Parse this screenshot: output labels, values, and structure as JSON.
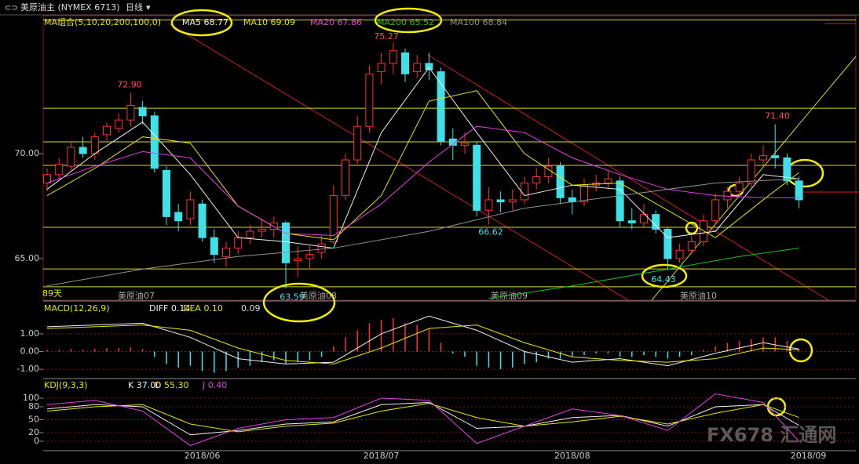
{
  "header": {
    "title": "美原油主 (NYMEX 6713)",
    "period": "日线",
    "watermark": "FX678 汇通网",
    "days": "89天",
    "contracts": [
      "美原油07",
      "美原油08",
      "美原油09",
      "美原油10"
    ]
  },
  "chart_data": [
    {
      "type": "candlestick",
      "title": "MA组合(5,10,20,200,100,0)",
      "ylim": [
        63.02,
        76.57
      ],
      "yticks": [
        {
          "value": 70,
          "label": "70.00"
        },
        {
          "value": 65,
          "label": "65.00"
        }
      ],
      "up_color": "#ff3030",
      "down_color": "#40e0e8",
      "categories": [
        null,
        null,
        null,
        null,
        null,
        null,
        null,
        null,
        null,
        null,
        null,
        null,
        null,
        "2018/06",
        null,
        null,
        null,
        null,
        null,
        null,
        null,
        null,
        null,
        null,
        null,
        null,
        null,
        null,
        "2018/07",
        null,
        null,
        null,
        null,
        null,
        null,
        null,
        null,
        null,
        null,
        null,
        null,
        null,
        null,
        null,
        "2018/08",
        null,
        null,
        null,
        null,
        null,
        null,
        null,
        null,
        null,
        null,
        null,
        null,
        null,
        null,
        null,
        null,
        null,
        null,
        "2018/09"
      ],
      "candles": [
        [
          68.6,
          69.3,
          68.2,
          69.0
        ],
        [
          69.0,
          69.8,
          68.8,
          69.5
        ],
        [
          69.4,
          70.6,
          69.2,
          70.3
        ],
        [
          70.3,
          70.8,
          69.8,
          70.0
        ],
        [
          70.0,
          71.0,
          69.7,
          70.8
        ],
        [
          70.9,
          71.5,
          70.6,
          71.3
        ],
        [
          71.2,
          71.9,
          71.0,
          71.6
        ],
        [
          71.6,
          72.9,
          71.3,
          72.3
        ],
        [
          72.2,
          72.5,
          71.4,
          71.8
        ],
        [
          71.8,
          72.0,
          69.1,
          69.3
        ],
        [
          69.2,
          69.4,
          66.6,
          67.0
        ],
        [
          67.2,
          67.6,
          66.3,
          66.8
        ],
        [
          66.9,
          68.2,
          66.6,
          67.8
        ],
        [
          67.6,
          67.8,
          65.8,
          66.0
        ],
        [
          66.0,
          66.4,
          64.8,
          65.2
        ],
        [
          65.1,
          65.8,
          64.6,
          65.5
        ],
        [
          65.5,
          66.3,
          65.2,
          66.0
        ],
        [
          66.0,
          66.6,
          65.7,
          66.3
        ],
        [
          66.3,
          66.9,
          66.0,
          66.4
        ],
        [
          66.4,
          67.0,
          66.0,
          66.7
        ],
        [
          66.7,
          66.8,
          63.59,
          64.8
        ],
        [
          64.9,
          65.6,
          64.1,
          65.0
        ],
        [
          65.0,
          65.6,
          64.5,
          65.2
        ],
        [
          65.3,
          66.1,
          65.0,
          65.7
        ],
        [
          65.8,
          68.5,
          65.7,
          68.0
        ],
        [
          68.0,
          70.0,
          67.8,
          69.7
        ],
        [
          69.7,
          71.8,
          69.5,
          71.3
        ],
        [
          71.3,
          74.2,
          71.0,
          73.8
        ],
        [
          73.9,
          74.8,
          73.3,
          74.3
        ],
        [
          74.3,
          75.27,
          73.8,
          74.9
        ],
        [
          74.8,
          75.0,
          73.4,
          73.8
        ],
        [
          73.9,
          74.7,
          73.6,
          74.3
        ],
        [
          74.3,
          74.8,
          73.5,
          74.0
        ],
        [
          73.9,
          74.1,
          70.4,
          70.6
        ],
        [
          70.7,
          71.2,
          69.7,
          70.4
        ],
        [
          70.4,
          71.0,
          70.0,
          70.5
        ],
        [
          70.4,
          70.6,
          67.0,
          67.3
        ],
        [
          67.3,
          68.4,
          66.62,
          67.8
        ],
        [
          67.8,
          68.2,
          67.2,
          67.7
        ],
        [
          67.7,
          68.3,
          67.3,
          67.8
        ],
        [
          67.8,
          68.9,
          67.6,
          68.6
        ],
        [
          68.6,
          69.3,
          68.3,
          68.9
        ],
        [
          68.9,
          69.8,
          68.6,
          69.4
        ],
        [
          69.4,
          69.6,
          67.6,
          67.9
        ],
        [
          67.9,
          68.3,
          67.1,
          67.7
        ],
        [
          67.7,
          68.8,
          67.5,
          68.5
        ],
        [
          68.5,
          69.0,
          68.2,
          68.6
        ],
        [
          68.6,
          69.2,
          68.3,
          68.8
        ],
        [
          68.7,
          68.9,
          66.5,
          66.8
        ],
        [
          66.8,
          67.4,
          66.4,
          66.7
        ],
        [
          66.7,
          67.6,
          66.5,
          67.1
        ],
        [
          67.1,
          67.3,
          66.2,
          66.4
        ],
        [
          66.4,
          66.5,
          64.43,
          65.0
        ],
        [
          65.0,
          65.7,
          64.8,
          65.4
        ],
        [
          65.4,
          66.1,
          65.2,
          65.8
        ],
        [
          65.8,
          67.1,
          65.6,
          66.8
        ],
        [
          66.8,
          68.1,
          66.6,
          67.8
        ],
        [
          67.8,
          68.4,
          67.4,
          68.2
        ],
        [
          68.2,
          68.9,
          67.9,
          68.6
        ],
        [
          68.6,
          70.0,
          68.4,
          69.7
        ],
        [
          69.7,
          70.4,
          69.4,
          69.9
        ],
        [
          69.9,
          71.4,
          69.3,
          69.8
        ],
        [
          69.8,
          70.0,
          68.5,
          68.7
        ],
        [
          68.7,
          68.9,
          67.4,
          67.8
        ]
      ],
      "series": [
        {
          "name": "MA5 68.77",
          "color": "#f0f0f0",
          "x": [
            0,
            4,
            8,
            12,
            16,
            20,
            24,
            28,
            32,
            36,
            40,
            44,
            48,
            52,
            56,
            60,
            63
          ],
          "values": [
            68.3,
            70.0,
            71.5,
            69.0,
            66.0,
            65.8,
            65.5,
            71.0,
            74.1,
            71.0,
            68.0,
            68.5,
            68.3,
            66.0,
            66.3,
            69.0,
            68.8
          ]
        },
        {
          "name": "MA10 69.09",
          "color": "#e6e600",
          "x": [
            0,
            4,
            8,
            12,
            16,
            20,
            24,
            28,
            32,
            36,
            40,
            44,
            48,
            52,
            56,
            60,
            63
          ],
          "values": [
            68.0,
            69.3,
            70.8,
            70.5,
            67.5,
            66.2,
            65.9,
            68.0,
            72.5,
            73.0,
            70.0,
            68.5,
            68.6,
            67.3,
            66.0,
            67.8,
            69.1
          ]
        },
        {
          "name": "MA20 67.86",
          "color": "#e040e0",
          "x": [
            0,
            4,
            8,
            12,
            16,
            20,
            24,
            28,
            32,
            36,
            40,
            44,
            48,
            52,
            56,
            60,
            63
          ],
          "values": [
            68.6,
            69.4,
            70.1,
            69.8,
            67.5,
            66.2,
            66.1,
            67.6,
            69.6,
            71.3,
            71.0,
            69.8,
            69.0,
            68.3,
            68.0,
            67.9,
            67.9
          ]
        },
        {
          "name": "MA200 65.52",
          "color": "#20c020",
          "x": [
            37,
            44,
            52,
            58,
            63
          ],
          "values": [
            63.1,
            63.7,
            64.5,
            65.1,
            65.5
          ]
        },
        {
          "name": "MA100 68.84",
          "color": "#909090",
          "x": [
            0,
            8,
            16,
            24,
            32,
            40,
            48,
            56,
            63
          ],
          "values": [
            63.7,
            64.5,
            65.1,
            65.5,
            66.3,
            67.4,
            68.0,
            68.6,
            68.8
          ]
        }
      ],
      "levels": [
        76.37,
        72.16,
        70.56,
        69.44,
        66.49,
        64.51,
        63.66
      ],
      "price_labels": [
        {
          "value": 72.9,
          "label": "72.90"
        },
        {
          "value": 75.27,
          "label": "75.27"
        },
        {
          "value": 63.59,
          "label": "63.59"
        },
        {
          "value": 66.62,
          "label": "66.62"
        },
        {
          "value": 64.43,
          "label": "64.43"
        },
        {
          "value": 71.4,
          "label": "71.40"
        }
      ]
    },
    {
      "type": "macd",
      "title": "MACD(12,26,9)",
      "ylim": [
        -1.48,
        2.81
      ],
      "yticks": [
        {
          "value": 1,
          "label": "1.00"
        },
        {
          "value": 0,
          "label": "0.00"
        },
        {
          "value": -1,
          "label": "-1.00"
        }
      ],
      "histogram": {
        "name": "0.09",
        "up_color": "#ff3030",
        "down_color": "#40e0e8",
        "values": [
          0.1,
          0.1,
          0.15,
          0.1,
          0.15,
          0.2,
          0.2,
          0.25,
          0.15,
          -0.3,
          -0.7,
          -0.9,
          -0.8,
          -1.1,
          -1.2,
          -1.1,
          -0.9,
          -0.8,
          -0.6,
          -0.5,
          -0.7,
          -0.6,
          -0.5,
          -0.3,
          0.3,
          0.8,
          1.2,
          1.6,
          1.8,
          1.9,
          1.6,
          1.5,
          1.3,
          0.5,
          -0.1,
          -0.3,
          -0.8,
          -0.9,
          -1.0,
          -0.9,
          -0.7,
          -0.6,
          -0.4,
          -0.4,
          -0.3,
          -0.2,
          -0.1,
          -0.1,
          -0.3,
          -0.3,
          -0.2,
          -0.3,
          -0.4,
          -0.3,
          -0.2,
          0.1,
          0.3,
          0.5,
          0.6,
          0.7,
          0.8,
          0.8,
          0.6,
          0.1
        ]
      },
      "series": [
        {
          "name": "DIFF 0.14",
          "color": "#f0f0f0",
          "x": [
            0,
            4,
            8,
            12,
            16,
            20,
            24,
            28,
            32,
            36,
            40,
            44,
            48,
            52,
            56,
            60,
            63
          ],
          "values": [
            1.4,
            1.5,
            1.6,
            0.8,
            -0.4,
            -0.7,
            -0.6,
            1.0,
            2.0,
            1.2,
            0.0,
            -0.6,
            -0.4,
            -0.8,
            -0.1,
            0.5,
            0.14
          ]
        },
        {
          "name": "DEA 0.10",
          "color": "#e6e600",
          "x": [
            0,
            4,
            8,
            12,
            16,
            20,
            24,
            28,
            32,
            36,
            40,
            44,
            48,
            52,
            56,
            60,
            63
          ],
          "values": [
            1.3,
            1.4,
            1.5,
            1.2,
            0.2,
            -0.5,
            -0.7,
            0.2,
            1.3,
            1.5,
            0.5,
            -0.3,
            -0.5,
            -0.6,
            -0.4,
            0.2,
            0.1
          ]
        }
      ]
    },
    {
      "type": "kdj",
      "title": "KDJ(9,3,3)",
      "ylim": [
        -21.8,
        141.8
      ],
      "yticks": [
        100,
        80,
        50,
        20,
        0
      ],
      "series": [
        {
          "name": "K 37.00",
          "color": "#f0f0f0",
          "x": [
            0,
            4,
            8,
            12,
            16,
            20,
            24,
            28,
            32,
            36,
            40,
            44,
            48,
            52,
            56,
            60,
            63
          ],
          "values": [
            75,
            85,
            80,
            15,
            25,
            40,
            45,
            85,
            90,
            30,
            35,
            55,
            60,
            35,
            80,
            85,
            37
          ]
        },
        {
          "name": "D 55.30",
          "color": "#e6e600",
          "x": [
            0,
            4,
            8,
            12,
            16,
            20,
            24,
            28,
            32,
            36,
            40,
            44,
            48,
            52,
            56,
            60,
            63
          ],
          "values": [
            70,
            80,
            85,
            40,
            22,
            35,
            42,
            70,
            88,
            55,
            35,
            45,
            58,
            40,
            65,
            85,
            55.3
          ]
        },
        {
          "name": "J 0.40",
          "color": "#e040e0",
          "x": [
            0,
            4,
            8,
            12,
            16,
            20,
            24,
            28,
            32,
            36,
            40,
            44,
            48,
            52,
            56,
            60,
            63
          ],
          "values": [
            85,
            95,
            70,
            -10,
            30,
            50,
            55,
            100,
            95,
            -5,
            35,
            75,
            60,
            25,
            110,
            90,
            0.4
          ]
        }
      ]
    }
  ]
}
